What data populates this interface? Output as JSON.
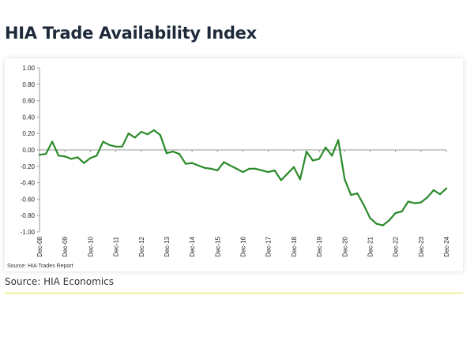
{
  "header": {
    "title": "HIA Trade Availability Index"
  },
  "footer": {
    "source": "Source: HIA Economics"
  },
  "colors": {
    "line": "#2a8a2a",
    "accent_rule": "#e5df3c",
    "axis": "#9a9a9a"
  },
  "chart_data": {
    "type": "line",
    "title": "HIA Trade Availability Index",
    "xlabel": "",
    "ylabel": "",
    "ylim": [
      -1.0,
      1.0
    ],
    "yticks": [
      1.0,
      0.8,
      0.6,
      0.4,
      0.2,
      0.0,
      -0.2,
      -0.4,
      -0.6,
      -0.8,
      -1.0
    ],
    "ytick_labels": [
      "1.00",
      "0.80",
      "0.60",
      "0.40",
      "0.20",
      "0.00",
      "-0.20",
      "-0.40",
      "-0.60",
      "-0.80",
      "-1.00"
    ],
    "xlim": [
      0,
      64
    ],
    "xticks": [
      0,
      4,
      8,
      12,
      16,
      20,
      24,
      28,
      32,
      36,
      40,
      44,
      48,
      52,
      56,
      60,
      64
    ],
    "xtick_labels": [
      "Dec-08",
      "Dec-09",
      "Dec-10",
      "Dec-11",
      "Dec-12",
      "Dec-13",
      "Dec-14",
      "Dec-15",
      "Dec-16",
      "Dec-17",
      "Dec-18",
      "Dec-19",
      "Dec-20",
      "Dec-21",
      "Dec-22",
      "Dec-23",
      "Dec-24"
    ],
    "source_note": "Source: HIA Trades Report",
    "grid": false,
    "series": [
      {
        "name": "HIA Trade Availability Index",
        "x": [
          0,
          1,
          2,
          3,
          4,
          5,
          6,
          7,
          8,
          9,
          10,
          11,
          12,
          13,
          14,
          15,
          16,
          17,
          18,
          19,
          20,
          21,
          22,
          23,
          24,
          25,
          26,
          27,
          28,
          29,
          30,
          31,
          32,
          33,
          34,
          35,
          36,
          37,
          38,
          39,
          40,
          41,
          42,
          43,
          44,
          45,
          46,
          47,
          48,
          49,
          50,
          51,
          52,
          53,
          54,
          55,
          56,
          57,
          58,
          59,
          60,
          61,
          62,
          63,
          64
        ],
        "values": [
          -0.06,
          -0.05,
          0.1,
          -0.07,
          -0.08,
          -0.11,
          -0.09,
          -0.16,
          -0.1,
          -0.07,
          0.1,
          0.06,
          0.04,
          0.04,
          0.2,
          0.15,
          0.22,
          0.19,
          0.24,
          0.18,
          -0.04,
          -0.02,
          -0.05,
          -0.17,
          -0.16,
          -0.19,
          -0.22,
          -0.23,
          -0.25,
          -0.15,
          -0.19,
          -0.23,
          -0.27,
          -0.23,
          -0.23,
          -0.25,
          -0.27,
          -0.25,
          -0.37,
          -0.29,
          -0.21,
          -0.36,
          -0.02,
          -0.13,
          -0.11,
          0.03,
          -0.07,
          0.12,
          -0.36,
          -0.55,
          -0.53,
          -0.67,
          -0.83,
          -0.9,
          -0.92,
          -0.86,
          -0.77,
          -0.75,
          -0.63,
          -0.65,
          -0.64,
          -0.58,
          -0.49,
          -0.54,
          -0.47
        ]
      }
    ]
  }
}
